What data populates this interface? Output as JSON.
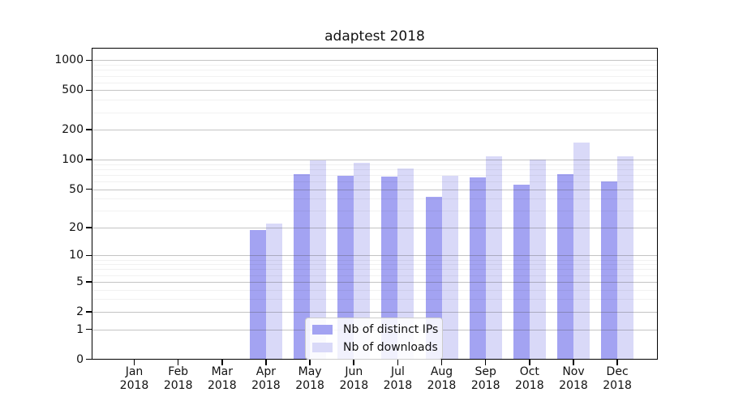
{
  "chart_data": {
    "type": "bar",
    "title": "adaptest 2018",
    "categories": [
      [
        "Jan",
        "2018"
      ],
      [
        "Feb",
        "2018"
      ],
      [
        "Mar",
        "2018"
      ],
      [
        "Apr",
        "2018"
      ],
      [
        "May",
        "2018"
      ],
      [
        "Jun",
        "2018"
      ],
      [
        "Jul",
        "2018"
      ],
      [
        "Aug",
        "2018"
      ],
      [
        "Sep",
        "2018"
      ],
      [
        "Oct",
        "2018"
      ],
      [
        "Nov",
        "2018"
      ],
      [
        "Dec",
        "2018"
      ]
    ],
    "series": [
      {
        "name": "Nb of distinct IPs",
        "color": "#a3a3f2",
        "values": [
          0,
          0,
          0,
          19,
          71,
          68,
          67,
          42,
          66,
          56,
          71,
          60
        ]
      },
      {
        "name": "Nb of downloads",
        "color": "#d9d9f8",
        "values": [
          0,
          0,
          0,
          22,
          98,
          93,
          81,
          68,
          108,
          100,
          148,
          107
        ]
      }
    ],
    "xlabel": "",
    "ylabel": "",
    "yscale": "log1p",
    "ylim": [
      0,
      1330
    ],
    "yticks": [
      0,
      1,
      2,
      5,
      10,
      20,
      50,
      100,
      200,
      500,
      1000
    ],
    "yticks_minor": [
      3,
      4,
      6,
      7,
      8,
      9,
      30,
      40,
      60,
      70,
      80,
      90,
      300,
      400,
      600,
      700,
      800,
      900
    ],
    "grid": "on",
    "legend_position": "lower center"
  }
}
